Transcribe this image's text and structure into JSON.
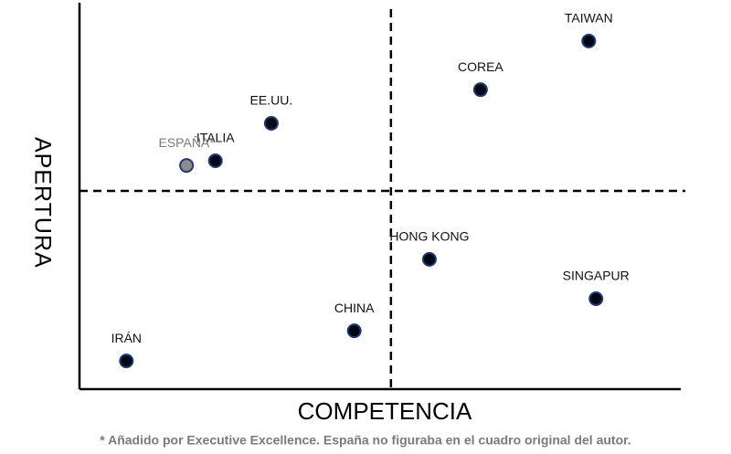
{
  "chart_data": {
    "type": "scatter",
    "x_label": "COMPETENCIA",
    "y_label": "APERTURA",
    "footnote": "* Añadido por Executive Excellence. España no figuraba en el cuadro original del autor.",
    "xlim": [
      0,
      100
    ],
    "ylim": [
      0,
      100
    ],
    "quadrant_lines": {
      "x": 51.8,
      "y": 51.3
    },
    "points": [
      {
        "label": "IRÁN",
        "x": 7.8,
        "y": 7.3,
        "color": "#000814",
        "label_color": "#111111"
      },
      {
        "label": "CHINA",
        "x": 45.7,
        "y": 15.1,
        "color": "#000814",
        "label_color": "#111111"
      },
      {
        "label": "HONG KONG",
        "x": 58.2,
        "y": 33.6,
        "color": "#000814",
        "label_color": "#111111"
      },
      {
        "label": "SINGAPUR",
        "x": 85.9,
        "y": 23.4,
        "color": "#000814",
        "label_color": "#111111"
      },
      {
        "label": "COREA",
        "x": 66.7,
        "y": 77.5,
        "color": "#000814",
        "label_color": "#111111"
      },
      {
        "label": "TAIWAN",
        "x": 84.7,
        "y": 90.1,
        "color": "#000814",
        "label_color": "#111111"
      },
      {
        "label": "EE.UU.",
        "x": 31.9,
        "y": 68.8,
        "color": "#000814",
        "label_color": "#111111"
      },
      {
        "label": "ITALIA",
        "x": 22.6,
        "y": 59.1,
        "color": "#000814",
        "label_color": "#111111"
      },
      {
        "label": "ESPAÑA*",
        "x": 17.8,
        "y": 57.9,
        "color": "#8c8c8c",
        "label_color": "#7a7a7a"
      }
    ]
  }
}
